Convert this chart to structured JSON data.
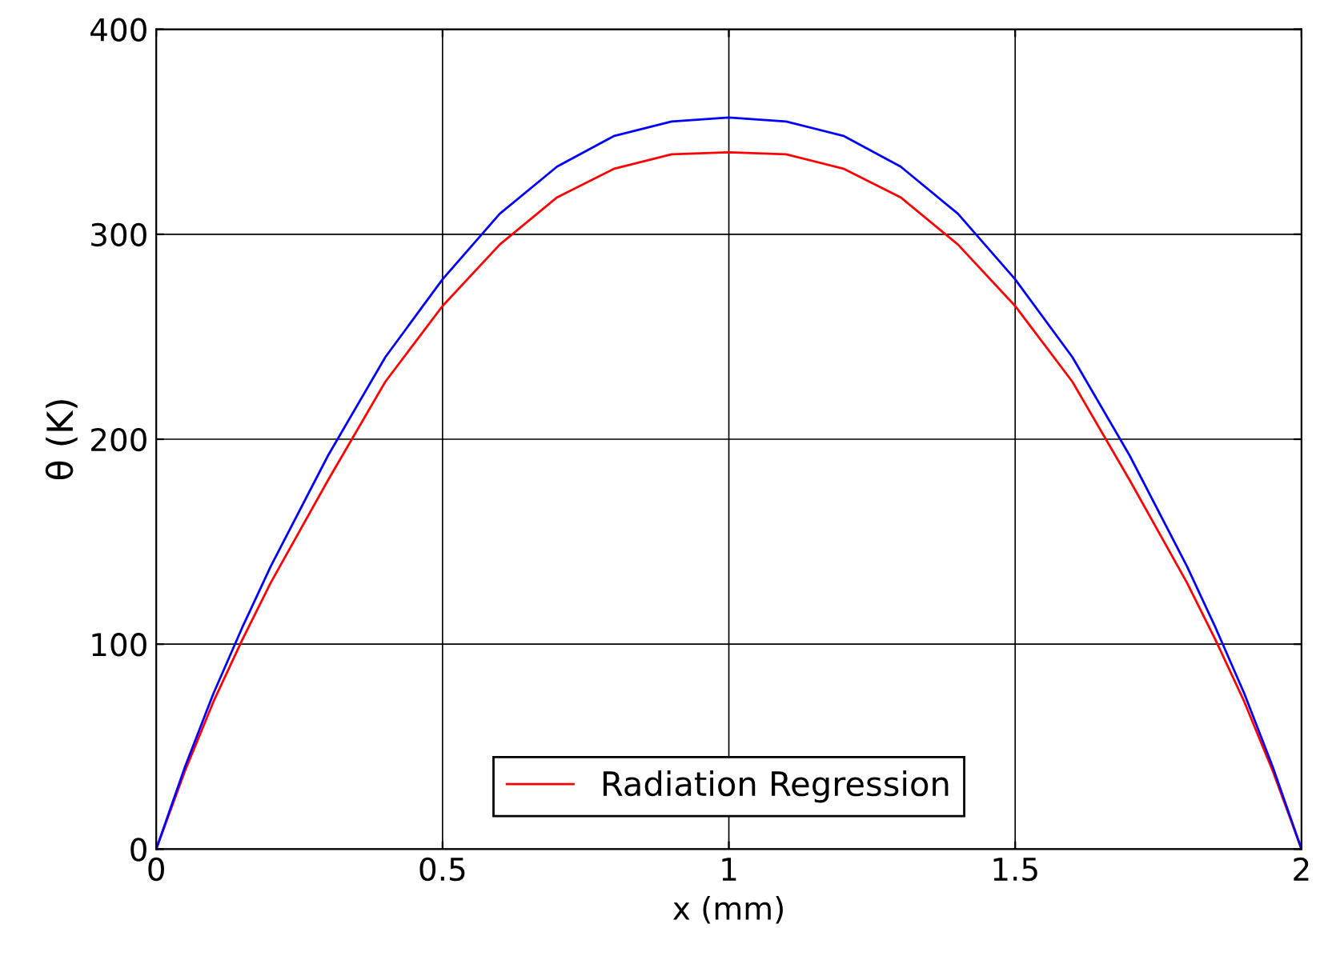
{
  "chart_data": {
    "type": "line",
    "xlabel": "x (mm)",
    "ylabel": "θ (K)",
    "x": [
      0,
      0.05,
      0.1,
      0.15,
      0.2,
      0.3,
      0.4,
      0.5,
      0.6,
      0.7,
      0.8,
      0.9,
      1.0,
      1.1,
      1.2,
      1.3,
      1.4,
      1.5,
      1.6,
      1.7,
      1.8,
      1.85,
      1.9,
      1.95,
      2.0
    ],
    "series": [
      {
        "name": "Radiation Regression",
        "color": "#ff0000",
        "values": [
          0,
          38,
          72,
          102,
          130,
          180,
          228,
          265,
          295,
          318,
          332,
          339,
          340,
          339,
          332,
          318,
          295,
          265,
          228,
          180,
          130,
          102,
          72,
          38,
          0
        ]
      },
      {
        "color": "#0000ff",
        "values": [
          0,
          40,
          76,
          108,
          138,
          192,
          240,
          278,
          310,
          333,
          348,
          355,
          357,
          355,
          348,
          333,
          310,
          278,
          240,
          192,
          138,
          108,
          76,
          40,
          0
        ]
      }
    ],
    "xlim": [
      0,
      2
    ],
    "ylim": [
      0,
      400
    ],
    "xticks": [
      0,
      0.5,
      1,
      1.5,
      2
    ],
    "yticks": [
      0,
      100,
      200,
      300,
      400
    ],
    "grid": true,
    "legend": "bottom",
    "marker": "none",
    "line_style": "solid"
  }
}
